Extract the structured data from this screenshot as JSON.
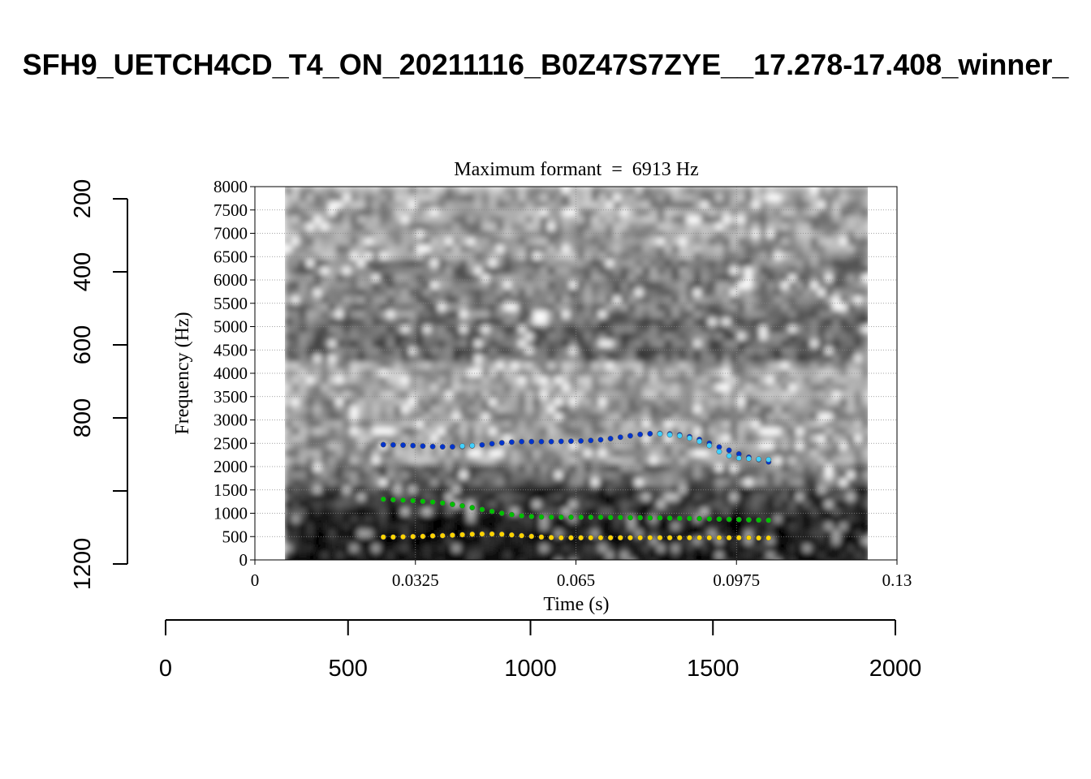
{
  "page": {
    "title": "SFH9_UETCH4CD_T4_ON_20211116_B0Z47S7ZYE__17.278-17.408_winner_"
  },
  "chart_data": {
    "type": "scatter",
    "subtitle": "Maximum formant  =  6913 Hz",
    "xlabel": "Time (s)",
    "ylabel": "Frequency (Hz)",
    "xlim": [
      0,
      0.13
    ],
    "ylim": [
      0,
      8000
    ],
    "xticks": [
      "0",
      "0.0325",
      "0.065",
      "0.0975",
      "0.13"
    ],
    "yticks": [
      "0",
      "500",
      "1000",
      "1500",
      "2000",
      "2500",
      "3000",
      "3500",
      "4000",
      "4500",
      "5000",
      "5500",
      "6000",
      "6500",
      "7000",
      "7500",
      "8000"
    ],
    "grid": true,
    "spectrogram_time_range": [
      0.006,
      0.124
    ],
    "outer_axes": {
      "bottom_ticks": [
        "0",
        "500",
        "1000",
        "1500",
        "2000"
      ],
      "bottom_range": [
        0,
        2000
      ],
      "left_ticks": [
        "200",
        "400",
        "600",
        "800",
        "1200"
      ],
      "left_tick_values": [
        200,
        400,
        600,
        800,
        1000,
        1200
      ],
      "left_range": [
        200,
        1200
      ]
    },
    "series": [
      {
        "color": "#ffd400",
        "x": [
          0.026,
          0.028,
          0.03,
          0.032,
          0.034,
          0.036,
          0.038,
          0.04,
          0.042,
          0.044,
          0.046,
          0.048,
          0.05,
          0.052,
          0.054,
          0.056,
          0.058,
          0.06,
          0.062,
          0.064,
          0.066,
          0.068,
          0.07,
          0.072,
          0.074,
          0.076,
          0.078,
          0.08,
          0.082,
          0.084,
          0.086,
          0.088,
          0.09,
          0.092,
          0.094,
          0.096,
          0.098,
          0.1,
          0.102,
          0.104
        ],
        "values": [
          490,
          490,
          495,
          500,
          505,
          515,
          520,
          530,
          540,
          550,
          555,
          555,
          550,
          535,
          520,
          505,
          490,
          480,
          475,
          475,
          475,
          475,
          475,
          475,
          475,
          475,
          475,
          475,
          475,
          475,
          475,
          475,
          475,
          475,
          475,
          475,
          475,
          475,
          470,
          470
        ]
      },
      {
        "color": "#00c000",
        "x": [
          0.026,
          0.028,
          0.03,
          0.032,
          0.034,
          0.036,
          0.038,
          0.04,
          0.042,
          0.044,
          0.046,
          0.048,
          0.05,
          0.052,
          0.054,
          0.056,
          0.058,
          0.06,
          0.062,
          0.064,
          0.066,
          0.068,
          0.07,
          0.072,
          0.074,
          0.076,
          0.078,
          0.08,
          0.082,
          0.084,
          0.086,
          0.088,
          0.09,
          0.092,
          0.094,
          0.096,
          0.098,
          0.1,
          0.102,
          0.104
        ],
        "values": [
          1300,
          1290,
          1280,
          1270,
          1255,
          1240,
          1220,
          1190,
          1160,
          1120,
          1080,
          1040,
          1000,
          970,
          945,
          930,
          920,
          915,
          915,
          915,
          915,
          915,
          915,
          910,
          910,
          905,
          905,
          900,
          900,
          895,
          890,
          890,
          885,
          880,
          875,
          870,
          865,
          860,
          855,
          850
        ]
      },
      {
        "color": "#0033cc",
        "x": [
          0.026,
          0.028,
          0.03,
          0.032,
          0.034,
          0.036,
          0.038,
          0.04,
          0.042,
          0.044,
          0.046,
          0.048,
          0.05,
          0.052,
          0.054,
          0.056,
          0.058,
          0.06,
          0.062,
          0.064,
          0.066,
          0.068,
          0.07,
          0.072,
          0.074,
          0.076,
          0.078,
          0.08,
          0.082,
          0.084,
          0.086,
          0.088,
          0.09,
          0.092,
          0.094,
          0.096,
          0.098,
          0.1,
          0.102,
          0.104
        ],
        "values": [
          2470,
          2465,
          2460,
          2450,
          2440,
          2430,
          2425,
          2425,
          2430,
          2445,
          2465,
          2490,
          2510,
          2525,
          2535,
          2535,
          2535,
          2535,
          2540,
          2545,
          2550,
          2560,
          2575,
          2600,
          2630,
          2660,
          2690,
          2705,
          2710,
          2700,
          2680,
          2640,
          2580,
          2500,
          2420,
          2350,
          2270,
          2200,
          2150,
          2100
        ]
      },
      {
        "color": "#40d0ff",
        "x": [
          0.042,
          0.044,
          0.082,
          0.084,
          0.086,
          0.088,
          0.09,
          0.092,
          0.094,
          0.096,
          0.098,
          0.1,
          0.102,
          0.104
        ],
        "values": [
          2440,
          2450,
          2700,
          2680,
          2660,
          2610,
          2540,
          2450,
          2320,
          2230,
          2180,
          2170,
          2160,
          2150
        ]
      }
    ]
  }
}
